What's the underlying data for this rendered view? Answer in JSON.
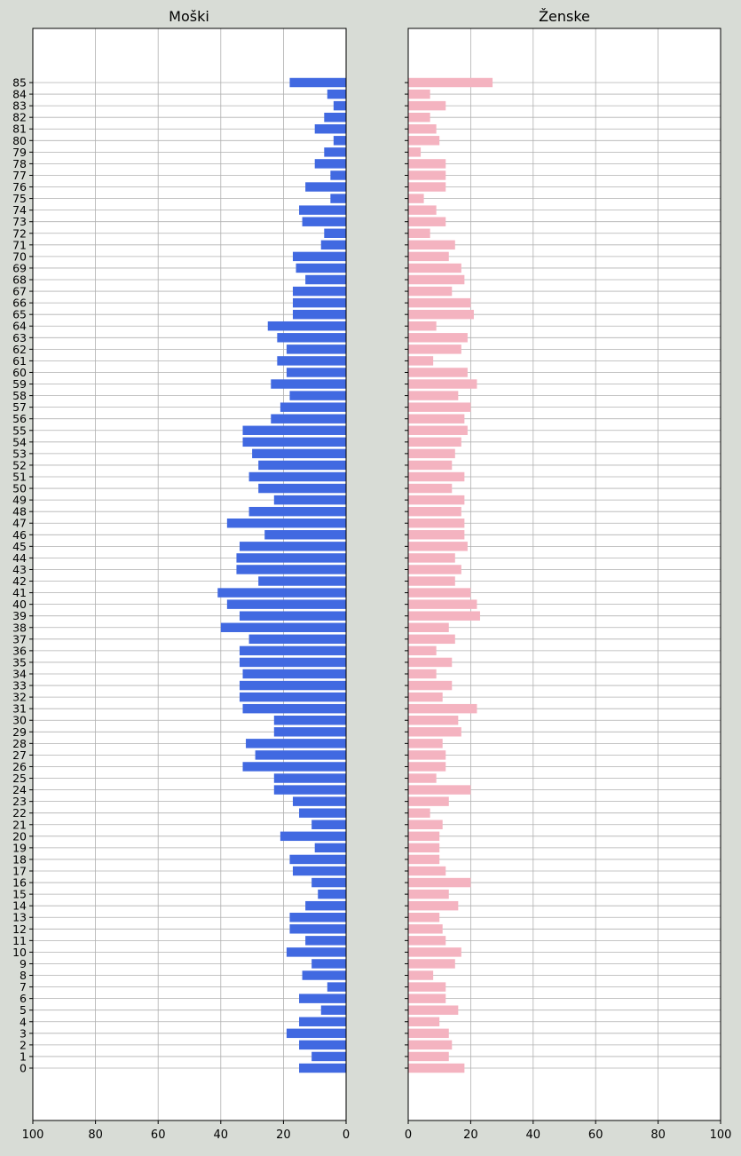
{
  "colors": {
    "background": "#d8dcd6",
    "plot_bg": "#ffffff",
    "male": "#4169e1",
    "female": "#f4b3c0",
    "grid": "#b0b0b0"
  },
  "chart_data": [
    {
      "type": "bar",
      "orientation": "horizontal",
      "direction": "right-to-left",
      "title": "Moški",
      "xlim": [
        100,
        0
      ],
      "xticks": [
        100,
        80,
        60,
        40,
        20,
        0
      ],
      "grid": true,
      "categories": [
        "0",
        "1",
        "2",
        "3",
        "4",
        "5",
        "6",
        "7",
        "8",
        "9",
        "10",
        "11",
        "12",
        "13",
        "14",
        "15",
        "16",
        "17",
        "18",
        "19",
        "20",
        "21",
        "22",
        "23",
        "24",
        "25",
        "26",
        "27",
        "28",
        "29",
        "30",
        "31",
        "32",
        "33",
        "34",
        "35",
        "36",
        "37",
        "38",
        "39",
        "40",
        "41",
        "42",
        "43",
        "44",
        "45",
        "46",
        "47",
        "48",
        "49",
        "50",
        "51",
        "52",
        "53",
        "54",
        "55",
        "56",
        "57",
        "58",
        "59",
        "60",
        "61",
        "62",
        "63",
        "64",
        "65",
        "66",
        "67",
        "68",
        "69",
        "70",
        "71",
        "72",
        "73",
        "74",
        "75",
        "76",
        "77",
        "78",
        "79",
        "80",
        "81",
        "82",
        "83",
        "84",
        "85"
      ],
      "values": [
        15,
        11,
        15,
        19,
        15,
        8,
        15,
        6,
        14,
        11,
        19,
        13,
        18,
        18,
        13,
        9,
        11,
        17,
        18,
        10,
        21,
        11,
        15,
        17,
        23,
        23,
        33,
        29,
        32,
        23,
        23,
        33,
        34,
        34,
        33,
        34,
        34,
        31,
        40,
        34,
        38,
        41,
        28,
        35,
        35,
        34,
        26,
        38,
        31,
        23,
        28,
        31,
        28,
        30,
        33,
        33,
        24,
        21,
        18,
        24,
        19,
        22,
        19,
        22,
        25,
        17,
        17,
        17,
        13,
        16,
        17,
        8,
        7,
        14,
        15,
        5,
        13,
        5,
        10,
        7,
        4,
        10,
        7,
        4,
        6,
        18
      ]
    },
    {
      "type": "bar",
      "orientation": "horizontal",
      "direction": "left-to-right",
      "title": "Ženske",
      "xlim": [
        0,
        100
      ],
      "xticks": [
        0,
        20,
        40,
        60,
        80,
        100
      ],
      "grid": true,
      "categories": [
        "0",
        "1",
        "2",
        "3",
        "4",
        "5",
        "6",
        "7",
        "8",
        "9",
        "10",
        "11",
        "12",
        "13",
        "14",
        "15",
        "16",
        "17",
        "18",
        "19",
        "20",
        "21",
        "22",
        "23",
        "24",
        "25",
        "26",
        "27",
        "28",
        "29",
        "30",
        "31",
        "32",
        "33",
        "34",
        "35",
        "36",
        "37",
        "38",
        "39",
        "40",
        "41",
        "42",
        "43",
        "44",
        "45",
        "46",
        "47",
        "48",
        "49",
        "50",
        "51",
        "52",
        "53",
        "54",
        "55",
        "56",
        "57",
        "58",
        "59",
        "60",
        "61",
        "62",
        "63",
        "64",
        "65",
        "66",
        "67",
        "68",
        "69",
        "70",
        "71",
        "72",
        "73",
        "74",
        "75",
        "76",
        "77",
        "78",
        "79",
        "80",
        "81",
        "82",
        "83",
        "84",
        "85"
      ],
      "values": [
        18,
        13,
        14,
        13,
        10,
        16,
        12,
        12,
        8,
        15,
        17,
        12,
        11,
        10,
        16,
        13,
        20,
        12,
        10,
        10,
        10,
        11,
        7,
        13,
        20,
        9,
        12,
        12,
        11,
        17,
        16,
        22,
        11,
        14,
        9,
        14,
        9,
        15,
        13,
        23,
        22,
        20,
        15,
        17,
        15,
        19,
        18,
        18,
        17,
        18,
        14,
        18,
        14,
        15,
        17,
        19,
        18,
        20,
        16,
        22,
        19,
        8,
        17,
        19,
        9,
        21,
        20,
        14,
        18,
        17,
        13,
        15,
        7,
        12,
        9,
        5,
        12,
        12,
        12,
        4,
        10,
        9,
        7,
        12,
        7,
        27
      ]
    }
  ]
}
